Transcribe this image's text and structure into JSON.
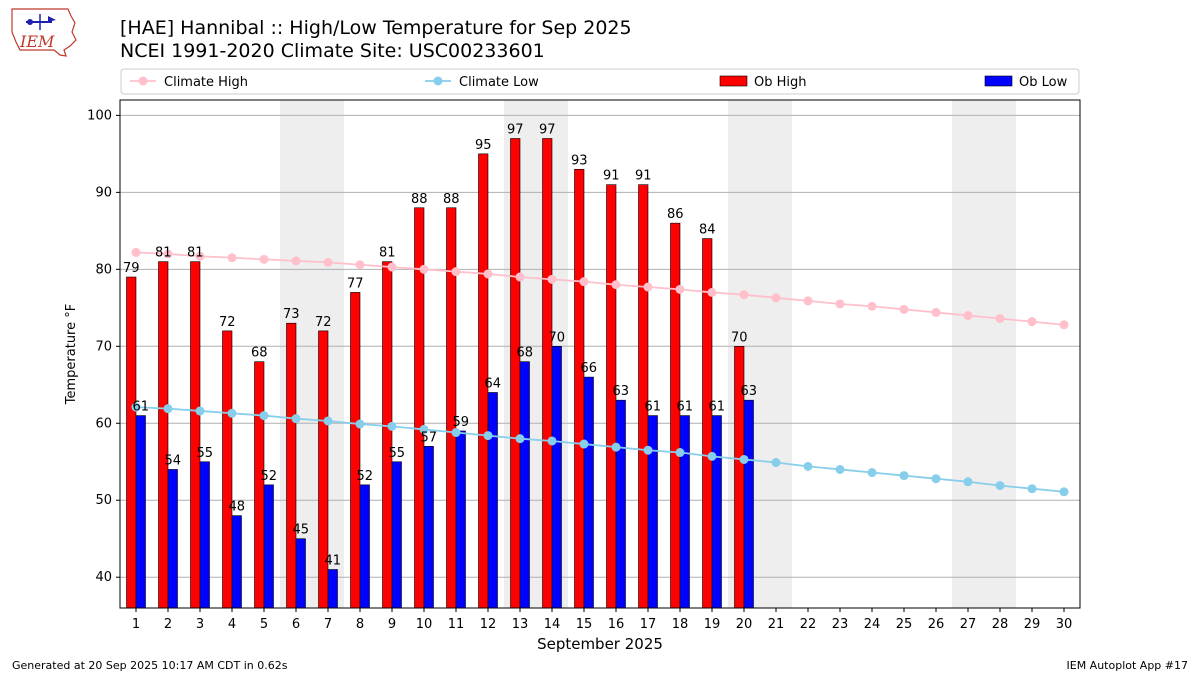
{
  "header": {
    "title_line1": "[HAE] Hannibal :: High/Low Temperature for Sep 2025",
    "title_line2": "NCEI 1991-2020 Climate Site: USC00233601",
    "logo_text": "IEM"
  },
  "footer": {
    "generated": "Generated at 20 Sep 2025 10:17 AM CDT in 0.62s",
    "app": "IEM Autoplot App #17"
  },
  "chart_data": {
    "type": "bar",
    "xlabel": "September 2025",
    "ylabel": "Temperature °F",
    "ylim": [
      36,
      102
    ],
    "yticks": [
      40,
      50,
      60,
      70,
      80,
      90,
      100
    ],
    "grid": true,
    "legend_position": "top",
    "days": [
      1,
      2,
      3,
      4,
      5,
      6,
      7,
      8,
      9,
      10,
      11,
      12,
      13,
      14,
      15,
      16,
      17,
      18,
      19,
      20,
      21,
      22,
      23,
      24,
      25,
      26,
      27,
      28,
      29,
      30
    ],
    "weekend_days": [
      6,
      7,
      13,
      14,
      20,
      21,
      27,
      28
    ],
    "series": [
      {
        "name": "Climate High",
        "kind": "line",
        "color": "#ffc0cb",
        "values": [
          82.2,
          82.0,
          81.7,
          81.5,
          81.3,
          81.1,
          80.9,
          80.6,
          80.3,
          80.0,
          79.7,
          79.4,
          79.0,
          78.7,
          78.4,
          78.0,
          77.7,
          77.4,
          77.0,
          76.7,
          76.3,
          75.9,
          75.5,
          75.2,
          74.8,
          74.4,
          74.0,
          73.6,
          73.2,
          72.8
        ]
      },
      {
        "name": "Climate Low",
        "kind": "line",
        "color": "#87ceeb",
        "values": [
          62.1,
          61.9,
          61.6,
          61.3,
          61.0,
          60.6,
          60.3,
          59.9,
          59.6,
          59.2,
          58.8,
          58.4,
          58.0,
          57.7,
          57.3,
          56.9,
          56.5,
          56.2,
          55.7,
          55.3,
          54.9,
          54.4,
          54.0,
          53.6,
          53.2,
          52.8,
          52.4,
          51.9,
          51.5,
          51.1
        ]
      },
      {
        "name": "Ob High",
        "kind": "bar",
        "color": "#ff0000",
        "values": [
          79,
          81,
          81,
          72,
          68,
          73,
          72,
          77,
          81,
          88,
          88,
          95,
          97,
          97,
          93,
          91,
          91,
          86,
          84,
          70
        ]
      },
      {
        "name": "Ob Low",
        "kind": "bar",
        "color": "#0000ff",
        "values": [
          61,
          54,
          55,
          48,
          52,
          45,
          41,
          52,
          55,
          57,
          59,
          64,
          68,
          70,
          66,
          63,
          61,
          61,
          61,
          63
        ]
      }
    ]
  }
}
